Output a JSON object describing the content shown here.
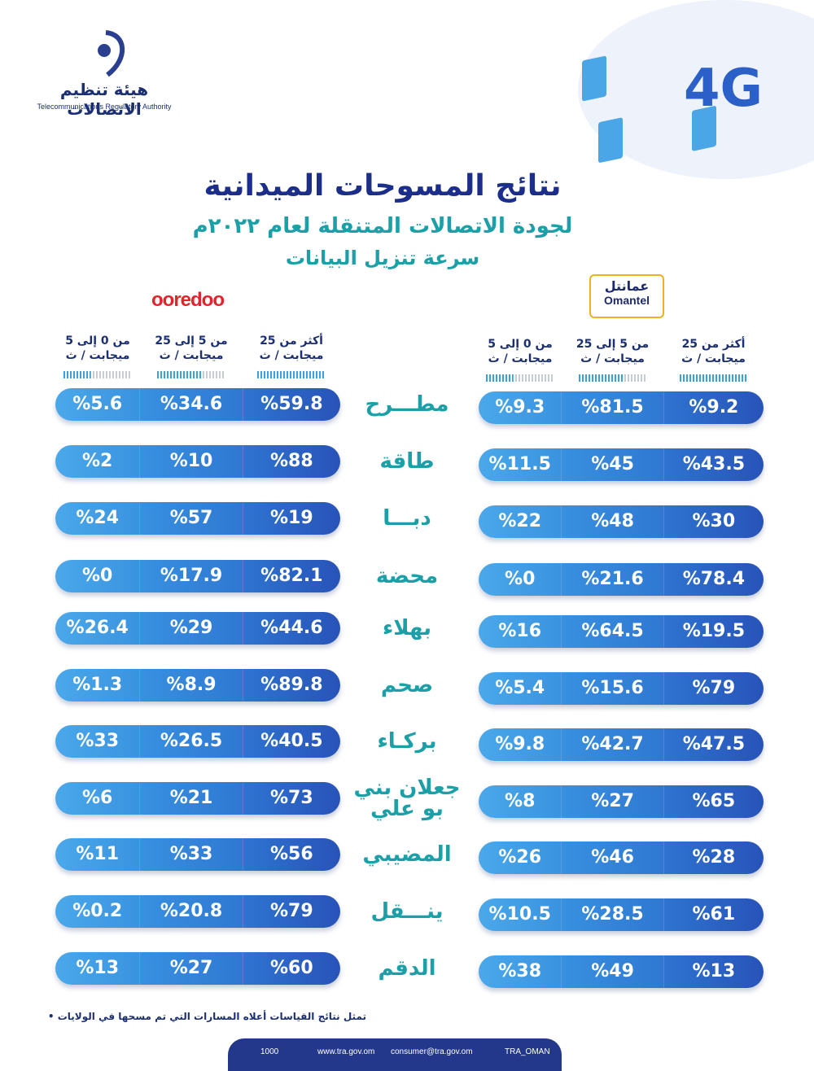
{
  "header": {
    "logo_ar": "هيئة تنظيم الاتصالات",
    "logo_en": "Telecommunications Regulatory Authority",
    "badge": "4G",
    "title": "نتائج المسوحات الميدانية",
    "subtitle": "لجودة الاتصالات المتنقلة لعام ٢٠٢٢م",
    "subtitle2": "سرعة تنزيل البيانات"
  },
  "operators": {
    "ooredoo": "ooredoo",
    "omantel_ar": "عمانتل",
    "omantel_en": "Omantel"
  },
  "columns": [
    [
      "أكثر من 25",
      "ميجابت / ث"
    ],
    [
      "من 5 إلى 25",
      "ميجابت / ث"
    ],
    [
      "من 0 إلى 5",
      "ميجابت / ث"
    ]
  ],
  "rows": [
    {
      "city": [
        "مطـــرح"
      ],
      "ooredoo": [
        "%59.8",
        "%34.6",
        "%5.6"
      ],
      "omantel": [
        "%9.2",
        "%81.5",
        "%9.3"
      ]
    },
    {
      "city": [
        "طاقة"
      ],
      "ooredoo": [
        "%88",
        "%10",
        "%2"
      ],
      "omantel": [
        "%43.5",
        "%45",
        "%11.5"
      ]
    },
    {
      "city": [
        "دبـــا"
      ],
      "ooredoo": [
        "%19",
        "%57",
        "%24"
      ],
      "omantel": [
        "%30",
        "%48",
        "%22"
      ]
    },
    {
      "city": [
        "محضة"
      ],
      "ooredoo": [
        "%82.1",
        "%17.9",
        "%0"
      ],
      "omantel": [
        "%78.4",
        "%21.6",
        "%0"
      ]
    },
    {
      "city": [
        "بهلاء"
      ],
      "ooredoo": [
        "%44.6",
        "%29",
        "%26.4"
      ],
      "omantel": [
        "%19.5",
        "%64.5",
        "%16"
      ]
    },
    {
      "city": [
        "صحم"
      ],
      "ooredoo": [
        "%89.8",
        "%8.9",
        "%1.3"
      ],
      "omantel": [
        "%79",
        "%15.6",
        "%5.4"
      ]
    },
    {
      "city": [
        "بركـاء"
      ],
      "ooredoo": [
        "%40.5",
        "%26.5",
        "%33"
      ],
      "omantel": [
        "%47.5",
        "%42.7",
        "%9.8"
      ]
    },
    {
      "city": [
        "جعلان بني",
        "بو علي"
      ],
      "ooredoo": [
        "%73",
        "%21",
        "%6"
      ],
      "omantel": [
        "%65",
        "%27",
        "%8"
      ]
    },
    {
      "city": [
        "المضيبي"
      ],
      "ooredoo": [
        "%56",
        "%33",
        "%11"
      ],
      "omantel": [
        "%28",
        "%46",
        "%26"
      ]
    },
    {
      "city": [
        "ينـــقل"
      ],
      "ooredoo": [
        "%79",
        "%20.8",
        "%0.2"
      ],
      "omantel": [
        "%61",
        "%28.5",
        "%10.5"
      ]
    },
    {
      "city": [
        "الدقم"
      ],
      "ooredoo": [
        "%60",
        "%27",
        "%13"
      ],
      "omantel": [
        "%13",
        "%49",
        "%38"
      ]
    }
  ],
  "note": "• تمثل نتائج القياسات أعلاه المسارات التي تم مسحها في الولايات",
  "footer": {
    "phone": "1000",
    "web": "www.tra.gov.om",
    "email": "consumer@tra.gov.om",
    "social": "TRA_OMAN"
  }
}
